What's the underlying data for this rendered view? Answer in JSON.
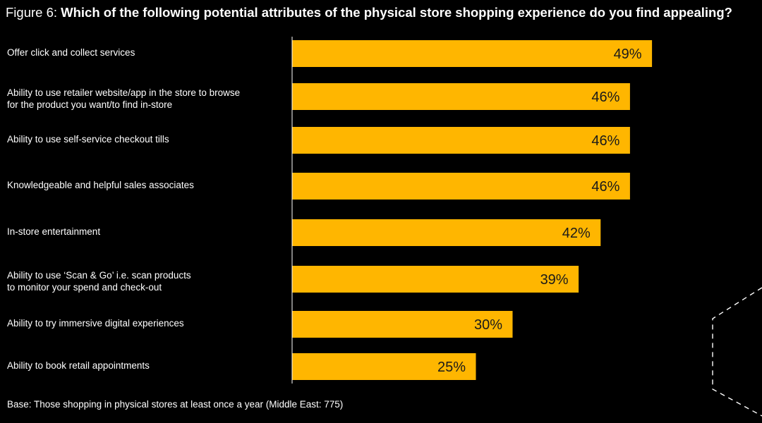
{
  "title": {
    "prefix": "Figure 6: ",
    "question": "Which of the following potential attributes of the physical store shopping experience do you find appealing?"
  },
  "footnote": "Base: Those shopping in physical stores at least once a year (Middle East: 775)",
  "colors": {
    "background": "#000000",
    "bar": "#FFB600",
    "axis": "#ffffff",
    "value_text": "#1a1a1a"
  },
  "chart_data": {
    "type": "bar",
    "orientation": "horizontal",
    "categories": [
      [
        "Offer click and collect services"
      ],
      [
        "Ability to use retailer website/app in the store to browse",
        "for the product you want/to find in-store"
      ],
      [
        "Ability to use self-service checkout tills"
      ],
      [
        "Knowledgeable and helpful sales associates"
      ],
      [
        "In-store entertainment"
      ],
      [
        "Ability to use ‘Scan & Go’ i.e. scan products",
        "to monitor your spend and check-out"
      ],
      [
        "Ability to try immersive digital experiences"
      ],
      [
        "Ability to book retail appointments"
      ]
    ],
    "values": [
      49,
      46,
      46,
      46,
      42,
      39,
      30,
      25
    ],
    "value_labels": [
      "49%",
      "46%",
      "46%",
      "46%",
      "42%",
      "39%",
      "30%",
      "25%"
    ],
    "unit": "%",
    "grid": false,
    "legend": "none"
  }
}
